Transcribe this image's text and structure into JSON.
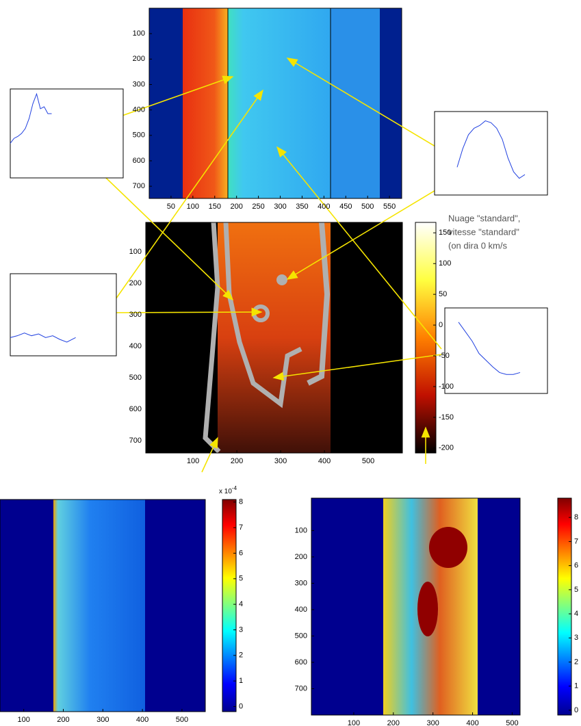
{
  "panels": [
    {
      "xlim": [
        0,
        578
      ],
      "ylim": [
        0,
        748
      ],
      "xticks": [
        50,
        100,
        150,
        200,
        250,
        300,
        350,
        400,
        450,
        500,
        550
      ],
      "yticks": [
        100,
        200,
        300,
        400,
        500,
        600,
        700
      ]
    },
    {
      "xlim": [
        -8,
        578
      ],
      "ylim": [
        6,
        739
      ],
      "xticks": [
        100,
        200,
        300,
        400,
        500
      ],
      "yticks": [
        100,
        200,
        300,
        400,
        500,
        600,
        700
      ]
    },
    {
      "xlim": [
        40,
        559
      ],
      "xticks": [
        100,
        200,
        300,
        400,
        500
      ]
    },
    {
      "xlim": [
        -7,
        520
      ],
      "ylim": [
        -23,
        800
      ],
      "xticks": [
        100,
        200,
        300,
        400,
        500
      ],
      "yticks": [
        100,
        200,
        300,
        400,
        500,
        600,
        700
      ]
    }
  ],
  "colorbars": [
    {
      "clim": [
        -208,
        167
      ],
      "ticks": [
        150,
        100,
        50,
        0,
        -50,
        -100,
        -150,
        -200
      ]
    },
    {
      "clim": [
        -0.2,
        8.1
      ],
      "ticks": [
        8,
        7,
        6,
        5,
        4,
        3,
        2,
        1,
        0
      ],
      "scale_base": "x 10",
      "scale_exponent": "-4"
    },
    {
      "clim": [
        -0.2,
        8.8
      ],
      "ticks": [
        8,
        7,
        6,
        5,
        4,
        3,
        2,
        1,
        0
      ]
    }
  ],
  "profiles": [
    {
      "xlim": [
        0,
        300
      ],
      "ylim": [
        0,
        0.9
      ],
      "x": [
        0,
        10,
        20,
        30,
        40,
        50,
        60,
        70,
        80,
        90,
        100,
        110
      ],
      "values": [
        0.35,
        0.4,
        0.42,
        0.45,
        0.5,
        0.6,
        0.75,
        0.85,
        0.7,
        0.72,
        0.65,
        0.65
      ]
    },
    {
      "xlim": [
        0,
        300
      ],
      "ylim": [
        0,
        0.9
      ],
      "x": [
        60,
        75,
        90,
        105,
        120,
        135,
        150,
        165,
        180,
        195,
        210,
        225,
        240
      ],
      "values": [
        0.3,
        0.5,
        0.65,
        0.72,
        0.75,
        0.8,
        0.78,
        0.72,
        0.6,
        0.4,
        0.25,
        0.18,
        0.22
      ]
    },
    {
      "xlim": [
        0,
        300
      ],
      "ylim": [
        0,
        0.9
      ],
      "x": [
        0,
        20,
        40,
        60,
        80,
        100,
        120,
        140,
        160,
        185
      ],
      "values": [
        0.2,
        0.22,
        0.25,
        0.22,
        0.24,
        0.2,
        0.22,
        0.18,
        0.15,
        0.2
      ]
    },
    {
      "xlim": [
        0,
        300
      ],
      "ylim": [
        0,
        0.9
      ],
      "x": [
        40,
        60,
        80,
        100,
        120,
        140,
        160,
        180,
        200,
        220
      ],
      "values": [
        0.75,
        0.65,
        0.55,
        0.42,
        0.35,
        0.28,
        0.22,
        0.2,
        0.2,
        0.22
      ]
    }
  ],
  "annotation": {
    "lines": [
      "Nuage  \"standard\",",
      "vitesse \"standard\"",
      "(on dira 0 km/s"
    ]
  }
}
